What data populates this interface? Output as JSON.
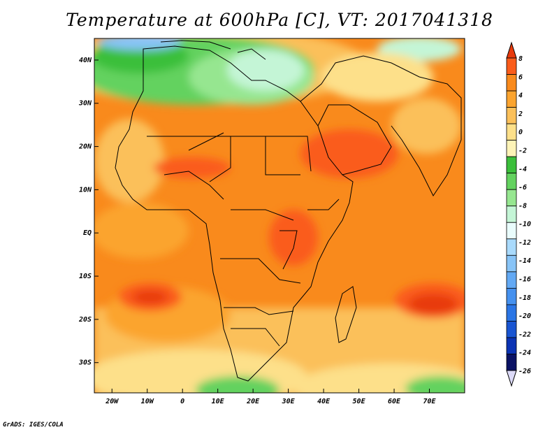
{
  "title": "Temperature at 600hPa [C], VT: 2017041318",
  "credit": "GrADS: IGES/COLA",
  "map": {
    "projection": "lat-lon",
    "lon_range": [
      -25,
      80
    ],
    "lat_range": [
      -37,
      45
    ],
    "lon_ticks": [
      {
        "value": -20,
        "label": "20W"
      },
      {
        "value": -10,
        "label": "10W"
      },
      {
        "value": 0,
        "label": "0"
      },
      {
        "value": 10,
        "label": "10E"
      },
      {
        "value": 20,
        "label": "20E"
      },
      {
        "value": 30,
        "label": "30E"
      },
      {
        "value": 40,
        "label": "40E"
      },
      {
        "value": 50,
        "label": "50E"
      },
      {
        "value": 60,
        "label": "60E"
      },
      {
        "value": 70,
        "label": "70E"
      }
    ],
    "lat_ticks": [
      {
        "value": 40,
        "label": "40N"
      },
      {
        "value": 30,
        "label": "30N"
      },
      {
        "value": 20,
        "label": "20N"
      },
      {
        "value": 10,
        "label": "10N"
      },
      {
        "value": 0,
        "label": "EQ"
      },
      {
        "value": -10,
        "label": "10S"
      },
      {
        "value": -20,
        "label": "20S"
      },
      {
        "value": -30,
        "label": "30S"
      }
    ]
  },
  "colorbar": {
    "levels": [
      "8",
      "6",
      "4",
      "2",
      "0",
      "-2",
      "-4",
      "-6",
      "-8",
      "-10",
      "-12",
      "-14",
      "-16",
      "-18",
      "-20",
      "-22",
      "-24",
      "-26"
    ],
    "colors": [
      "#e83a0c",
      "#fa5c1a",
      "#f98a1c",
      "#fba42f",
      "#fbc05a",
      "#fde08a",
      "#fdf3b7",
      "#3bbf3b",
      "#63d25f",
      "#96e690",
      "#c4f5d6",
      "#e9fcfc",
      "#a9dafc",
      "#88c4f7",
      "#63a9f4",
      "#4591ef",
      "#2a75e5",
      "#1955d2",
      "#0b33b4",
      "#0a1264",
      "#dcdaf8"
    ]
  }
}
